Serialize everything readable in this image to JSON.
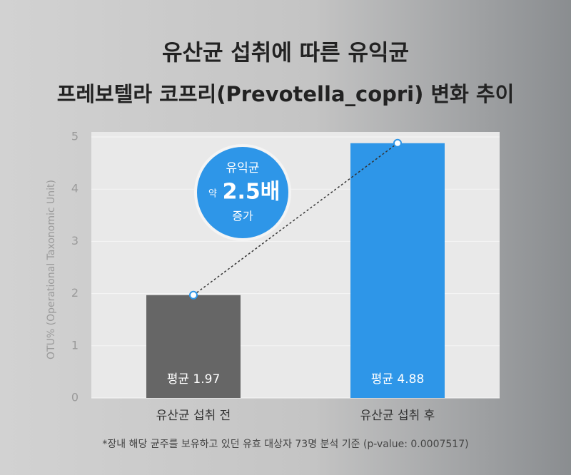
{
  "chart_data": {
    "type": "bar",
    "title": [
      "유산균 섭취에 따른 유익균",
      "프레보텔라 코프리(Prevotella_copri) 변화 추이"
    ],
    "y_label": "OTU% (Operational Taxonomic Unit)",
    "categories": [
      "유산균 섭취 전",
      "유산균 섭취 후"
    ],
    "values": [
      1.97,
      4.88
    ],
    "value_labels": [
      "평균 1.97",
      "평균 4.88"
    ],
    "colors": [
      "#666666",
      "#2e96e8"
    ],
    "ylim": [
      0,
      5
    ],
    "yticks": [
      0,
      1,
      2,
      3,
      4,
      5
    ],
    "grid": true,
    "annotation": {
      "lines": [
        "유익균",
        "약",
        "2.5배",
        "증가"
      ]
    },
    "footnote": "*장내 해당 균주를 보유하고 있던 유효 대상자 73명 분석 기준 (p-value: 0.0007517)"
  }
}
